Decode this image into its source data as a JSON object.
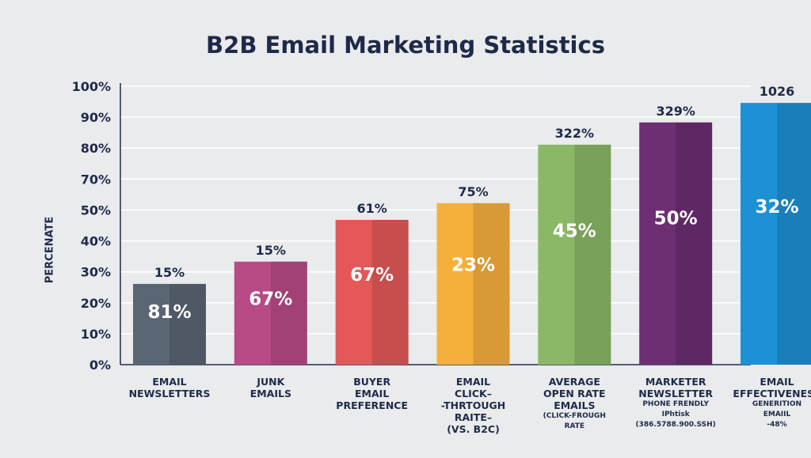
{
  "chart_data": {
    "type": "bar",
    "title": "B2B Email Marketing Statistics",
    "ylabel": "PERCENATE",
    "xlabel": "",
    "ylim": [
      0,
      100
    ],
    "yticks": [
      "0%",
      "10%",
      "20%",
      "30%",
      "40%",
      "50%",
      "70%",
      "80%",
      "90%",
      "100%"
    ],
    "grid": true,
    "legend": "none",
    "categories": [
      {
        "lines": [
          "EMAIL",
          "NEWSLETTERS"
        ],
        "sub": []
      },
      {
        "lines": [
          "JUNK",
          "EMAILS"
        ],
        "sub": []
      },
      {
        "lines": [
          "BUYER",
          "EMAIL",
          "PREFERENCE"
        ],
        "sub": []
      },
      {
        "lines": [
          "EMAIL",
          "CLICK–",
          "-THRTOUGH",
          "RAITE–",
          "(VS. B2C)"
        ],
        "sub": []
      },
      {
        "lines": [
          "AVERAGE",
          "OPEN RATE",
          "EMAILS"
        ],
        "sub": [
          "(CLICK-FROUGH",
          "RATE"
        ]
      },
      {
        "lines": [
          "MARKETER",
          "NEWSLETTER"
        ],
        "sub": [
          "PHONE FRENDLY",
          "IPhtisk",
          "(386.5788.900.SSH)"
        ]
      },
      {
        "lines": [
          "EMAIL",
          "EFFECTIVENESS"
        ],
        "sub": [
          "GENERITION",
          "EMAIIL",
          "-48%"
        ]
      }
    ],
    "values": [
      29,
      37,
      52,
      58,
      79,
      87,
      94
    ],
    "top_labels": [
      "15%",
      "15%",
      "61%",
      "75%",
      "322%",
      "329%",
      "1026"
    ],
    "inner_labels": [
      "81%",
      "67%",
      "67%",
      "23%",
      "45%",
      "50%",
      "32%"
    ],
    "colors": [
      "#5a6674",
      "#b84a86",
      "#e45858",
      "#f5b03c",
      "#8bb866",
      "#6d2e74",
      "#1e90d4"
    ]
  }
}
